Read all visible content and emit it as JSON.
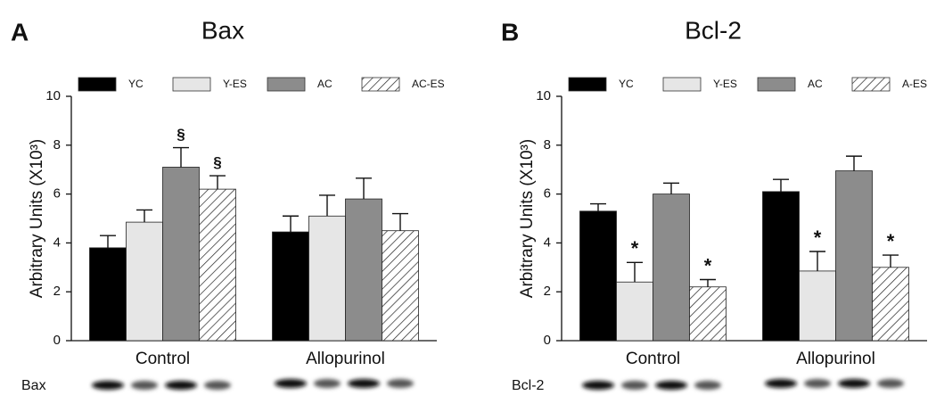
{
  "chart_data": [
    {
      "type": "bar",
      "panel": "A",
      "title": "Bax",
      "ylabel": "Arbitrary Units (X10³)",
      "categories": [
        "Control",
        "Allopurinol"
      ],
      "blot_label": "Bax",
      "ylim": [
        0,
        10
      ],
      "yticks": [
        0,
        2,
        4,
        6,
        8,
        10
      ],
      "legend": "top",
      "series": [
        {
          "name": "YC",
          "color": "#000000",
          "values": [
            3.8,
            4.45
          ],
          "errors": [
            0.5,
            0.65
          ]
        },
        {
          "name": "Y-ES",
          "color": "#e6e6e6",
          "values": [
            4.85,
            5.1
          ],
          "errors": [
            0.5,
            0.85
          ]
        },
        {
          "name": "AC",
          "color": "#8c8c8c",
          "values": [
            7.1,
            5.8
          ],
          "errors": [
            0.8,
            0.85
          ],
          "marks": [
            "§",
            null
          ]
        },
        {
          "name": "AC-ES",
          "color": "#ffffff",
          "hatch": true,
          "values": [
            6.2,
            4.5
          ],
          "errors": [
            0.55,
            0.7
          ],
          "marks": [
            "§",
            null
          ]
        }
      ]
    },
    {
      "type": "bar",
      "panel": "B",
      "title": "Bcl-2",
      "ylabel": "Arbitrary Units (X10³)",
      "categories": [
        "Control",
        "Allopurinol"
      ],
      "blot_label": "Bcl-2",
      "ylim": [
        0,
        10
      ],
      "yticks": [
        0,
        2,
        4,
        6,
        8,
        10
      ],
      "legend": "top",
      "series": [
        {
          "name": "YC",
          "color": "#000000",
          "values": [
            5.3,
            6.1
          ],
          "errors": [
            0.3,
            0.5
          ]
        },
        {
          "name": "Y-ES",
          "color": "#e6e6e6",
          "values": [
            2.4,
            2.85
          ],
          "errors": [
            0.8,
            0.8
          ],
          "marks": [
            "*",
            "*"
          ]
        },
        {
          "name": "AC",
          "color": "#8c8c8c",
          "values": [
            6.0,
            6.95
          ],
          "errors": [
            0.45,
            0.6
          ]
        },
        {
          "name": "A-ES",
          "color": "#ffffff",
          "hatch": true,
          "values": [
            2.2,
            3.0
          ],
          "errors": [
            0.3,
            0.5
          ],
          "marks": [
            "*",
            "*"
          ]
        }
      ]
    }
  ]
}
